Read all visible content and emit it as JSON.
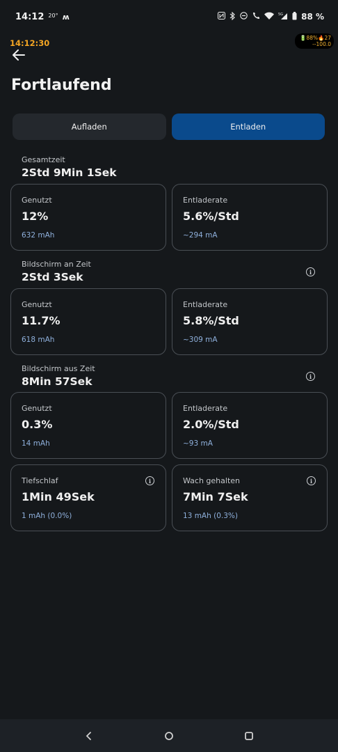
{
  "status": {
    "time": "14:12",
    "temp": "20°",
    "battery_pct": "88 %"
  },
  "overlay": {
    "time": "14:12:30",
    "badge_line1": "🔋88%🔥27",
    "badge_line2": "--100.0"
  },
  "title": "Fortlaufend",
  "tabs": [
    {
      "label": "Aufladen",
      "active": false
    },
    {
      "label": "Entladen",
      "active": true
    }
  ],
  "total": {
    "label": "Gesamtzeit",
    "value": "2Std 9Min 1Sek",
    "used": {
      "label": "Genutzt",
      "value": "12%",
      "sub": "632 mAh"
    },
    "rate": {
      "label": "Entladerate",
      "value": "5.6%/Std",
      "sub": "~294 mA"
    }
  },
  "screen_on": {
    "label": "Bildschirm an Zeit",
    "value": "2Std 3Sek",
    "used": {
      "label": "Genutzt",
      "value": "11.7%",
      "sub": "618 mAh"
    },
    "rate": {
      "label": "Entladerate",
      "value": "5.8%/Std",
      "sub": "~309 mA"
    }
  },
  "screen_off": {
    "label": "Bildschirm aus Zeit",
    "value": "8Min 57Sek",
    "used": {
      "label": "Genutzt",
      "value": "0.3%",
      "sub": "14 mAh"
    },
    "rate": {
      "label": "Entladerate",
      "value": "2.0%/Std",
      "sub": "~93 mA"
    }
  },
  "deep_sleep": {
    "label": "Tiefschlaf",
    "value": "1Min 49Sek",
    "sub": "1 mAh (0.0%)"
  },
  "awake": {
    "label": "Wach gehalten",
    "value": "7Min 7Sek",
    "sub": "13 mAh (0.3%)"
  }
}
